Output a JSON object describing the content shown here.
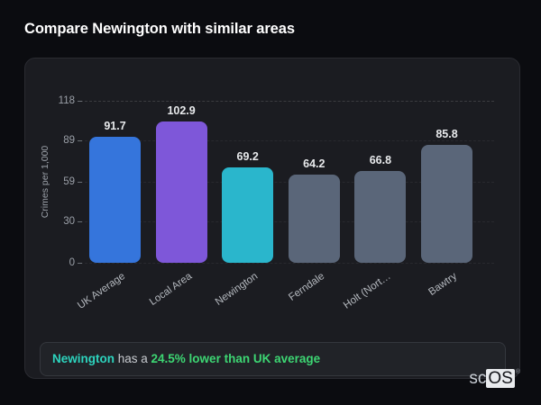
{
  "title": "Compare Newington with similar areas",
  "chart_data": {
    "type": "bar",
    "categories": [
      "UK Average",
      "Local Area",
      "Newington",
      "Ferndale",
      "Holt (Nort…",
      "Bawtry"
    ],
    "values": [
      91.7,
      102.9,
      69.2,
      64.2,
      66.8,
      85.8
    ],
    "value_labels": [
      "91.7",
      "102.9",
      "69.2",
      "64.2",
      "66.8",
      "85.8"
    ],
    "colors": [
      "#3575DC",
      "#7E57D9",
      "#2AB6CC",
      "#5A6679",
      "#5A6679",
      "#5A6679"
    ],
    "title": "",
    "xlabel": "",
    "ylabel": "Crimes per 1,000",
    "yticks": [
      0,
      30,
      59,
      89,
      118
    ],
    "ylim": [
      0,
      118
    ],
    "grid": "dashed-horizontal",
    "xtick_rotation_deg": -35,
    "legend": "none"
  },
  "note": {
    "area": "Newington",
    "middle": " has a ",
    "stat": "24.5% lower than UK average",
    "area_color": "#2dd4be",
    "stat_color": "#3dd673"
  },
  "logo": {
    "prefix": "sc",
    "suffix": "OS",
    "registered": "®"
  },
  "theme": {
    "page_bg": "#0b0c10",
    "card_bg": "#1b1c21",
    "card_border": "#2a2b31",
    "text_primary": "#ffffff",
    "text_muted": "#9ba0a8"
  }
}
